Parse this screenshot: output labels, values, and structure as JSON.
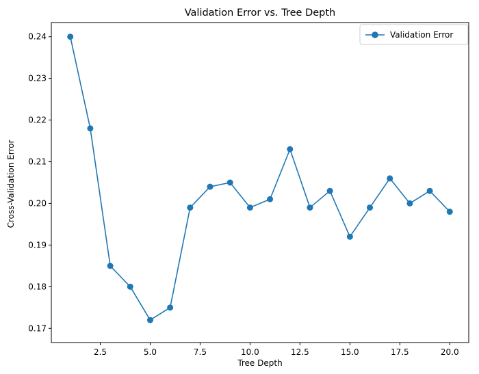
{
  "chart_data": {
    "type": "line",
    "title": "Validation Error vs. Tree Depth",
    "xlabel": "Tree Depth",
    "ylabel": "Cross-Validation Error",
    "xlim": [
      0.05,
      20.95
    ],
    "ylim": [
      0.1666,
      0.2434
    ],
    "xticks": [
      2.5,
      5.0,
      7.5,
      10.0,
      12.5,
      15.0,
      17.5,
      20.0
    ],
    "xtick_labels": [
      "2.5",
      "5.0",
      "7.5",
      "10.0",
      "12.5",
      "15.0",
      "17.5",
      "20.0"
    ],
    "yticks": [
      0.17,
      0.18,
      0.19,
      0.2,
      0.21,
      0.22,
      0.23,
      0.24
    ],
    "ytick_labels": [
      "0.17",
      "0.18",
      "0.19",
      "0.20",
      "0.21",
      "0.22",
      "0.23",
      "0.24"
    ],
    "grid": false,
    "legend_position": "top-right",
    "series": [
      {
        "name": "Validation Error",
        "color": "#1f77b4",
        "marker": "circle",
        "x": [
          1,
          2,
          3,
          4,
          5,
          6,
          7,
          8,
          9,
          10,
          11,
          12,
          13,
          14,
          15,
          16,
          17,
          18,
          19,
          20
        ],
        "y": [
          0.24,
          0.218,
          0.185,
          0.18,
          0.172,
          0.175,
          0.199,
          0.204,
          0.205,
          0.199,
          0.201,
          0.213,
          0.199,
          0.203,
          0.192,
          0.199,
          0.206,
          0.2,
          0.203,
          0.198
        ]
      }
    ]
  }
}
